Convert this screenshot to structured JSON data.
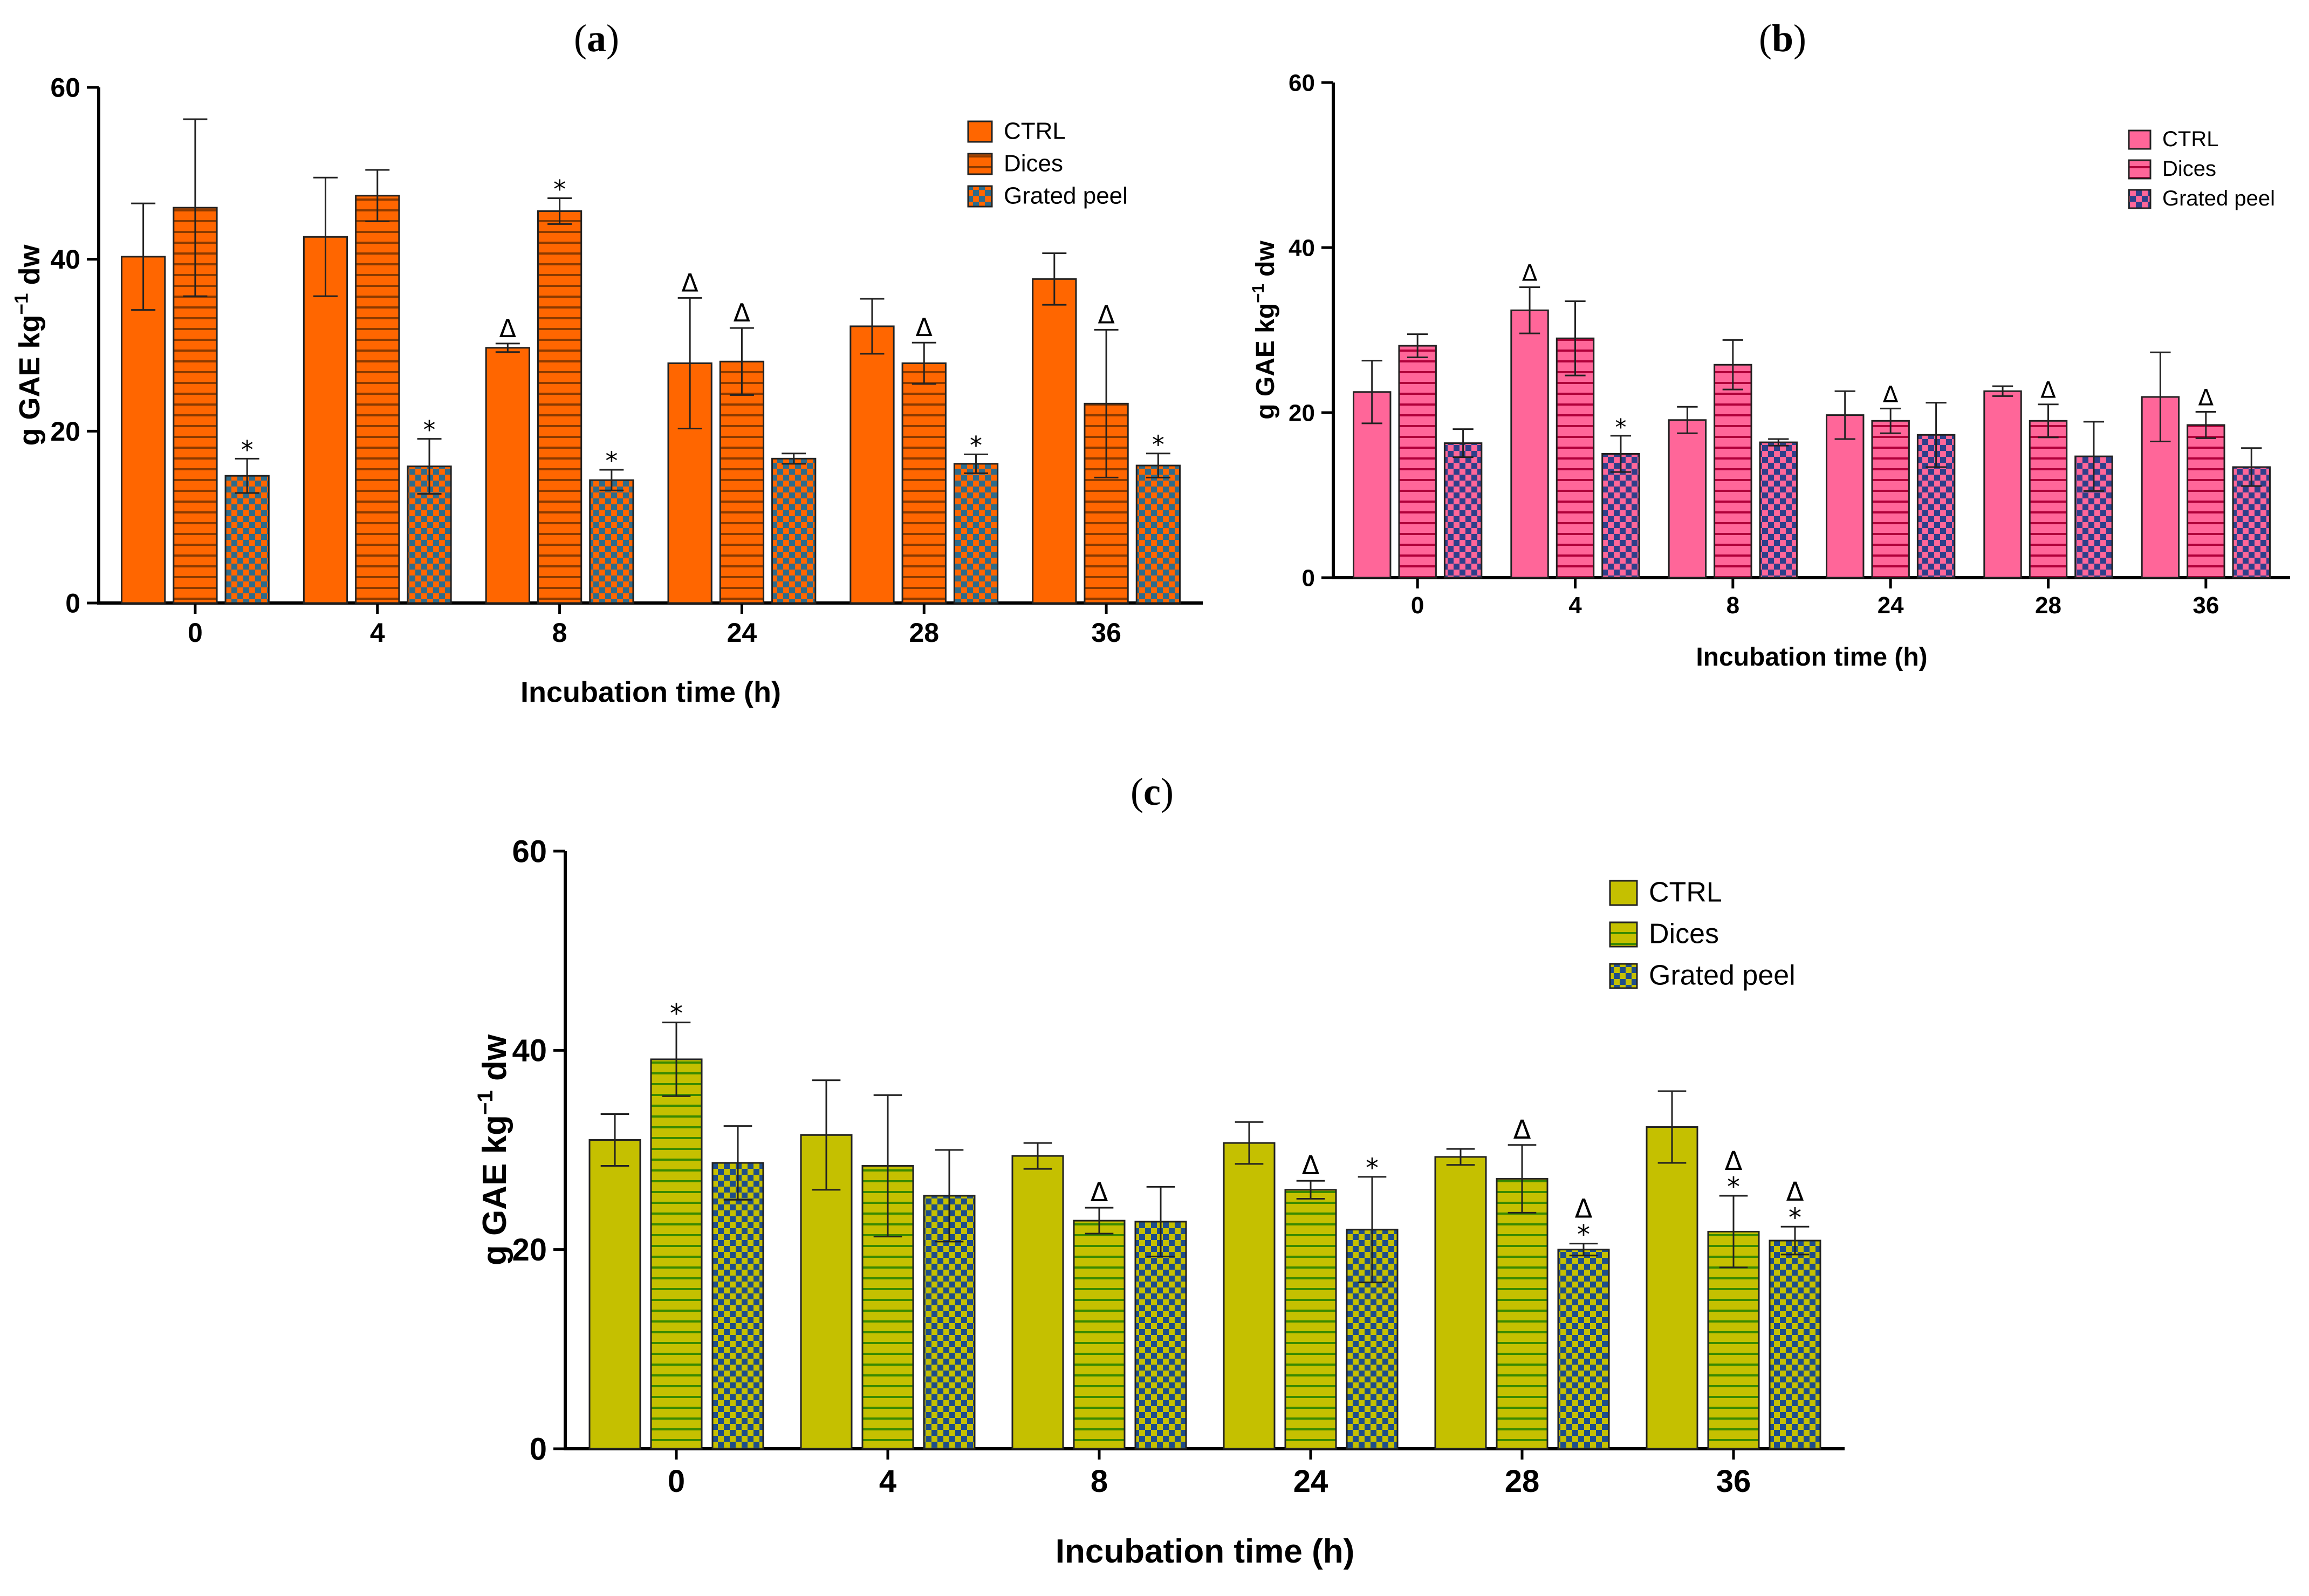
{
  "chart_data": [
    {
      "id": "a",
      "type": "bar",
      "panel_label": "a",
      "ylabel": "g GAE kg−1 dw",
      "ylabel_main": "g GAE kg",
      "ylabel_sup": "−1",
      "ylabel_tail": " dw",
      "xlabel": "Incubation time (h)",
      "ylim": [
        0,
        60
      ],
      "yticks": [
        0,
        20,
        40,
        60
      ],
      "categories": [
        "0",
        "4",
        "8",
        "24",
        "28",
        "36"
      ],
      "legend_position": "top-right",
      "series": [
        {
          "name": "CTRL",
          "pattern": "solid",
          "values": [
            40.3,
            42.6,
            29.7,
            27.9,
            32.2,
            37.7
          ],
          "errors": [
            6.2,
            6.9,
            0.5,
            7.6,
            3.2,
            3.0
          ],
          "marks": [
            "",
            "",
            "Δ",
            "Δ",
            "",
            ""
          ]
        },
        {
          "name": "Dices",
          "pattern": "hstripes",
          "values": [
            46.0,
            47.4,
            45.6,
            28.1,
            27.9,
            23.2
          ],
          "errors": [
            10.3,
            3.0,
            1.5,
            3.9,
            2.4,
            8.6
          ],
          "marks": [
            "",
            "",
            "*",
            "Δ",
            "Δ",
            "Δ"
          ]
        },
        {
          "name": "Grated peel",
          "pattern": "checker",
          "values": [
            14.8,
            15.9,
            14.3,
            16.8,
            16.2,
            16.0
          ],
          "errors": [
            2.0,
            3.2,
            1.2,
            0.6,
            1.1,
            1.4
          ],
          "marks": [
            "*",
            "*",
            "*",
            "",
            "*",
            "*"
          ]
        }
      ],
      "colors": {
        "fill": "#FF6600",
        "stripe": "#8B3A00",
        "checker": "#2E6B8A"
      }
    },
    {
      "id": "b",
      "type": "bar",
      "panel_label": "b",
      "ylabel": "g GAE kg−1 dw",
      "ylabel_main": "g GAE kg",
      "ylabel_sup": "−1",
      "ylabel_tail": " dw",
      "xlabel": "Incubation time (h)",
      "ylim": [
        0,
        60
      ],
      "yticks": [
        0,
        20,
        40,
        60
      ],
      "categories": [
        "0",
        "4",
        "8",
        "24",
        "28",
        "36"
      ],
      "legend_position": "top-right",
      "series": [
        {
          "name": "CTRL",
          "pattern": "solid",
          "values": [
            22.5,
            32.4,
            19.1,
            19.7,
            22.6,
            21.9
          ],
          "errors": [
            3.8,
            2.8,
            1.6,
            2.9,
            0.6,
            5.4
          ],
          "marks": [
            "",
            "Δ",
            "",
            "",
            "",
            ""
          ]
        },
        {
          "name": "Dices",
          "pattern": "hstripes",
          "values": [
            28.1,
            29.0,
            25.8,
            19.0,
            19.0,
            18.5
          ],
          "errors": [
            1.4,
            4.5,
            3.0,
            1.5,
            2.0,
            1.6
          ],
          "marks": [
            "",
            "",
            "",
            "Δ",
            "Δ",
            "Δ"
          ]
        },
        {
          "name": "Grated peel",
          "pattern": "checker",
          "values": [
            16.3,
            15.0,
            16.4,
            17.3,
            14.7,
            13.4
          ],
          "errors": [
            1.7,
            2.2,
            0.4,
            3.9,
            4.2,
            2.3
          ],
          "marks": [
            "",
            "*",
            "",
            "",
            "",
            ""
          ]
        }
      ],
      "colors": {
        "fill": "#FF6699",
        "stripe": "#B0003A",
        "checker": "#2E3F8A"
      }
    },
    {
      "id": "c",
      "type": "bar",
      "panel_label": "c",
      "ylabel": "g GAE kg−1 dw",
      "ylabel_main": "g GAE kg",
      "ylabel_sup": "−1",
      "ylabel_tail": " dw",
      "xlabel": "Incubation time (h)",
      "ylim": [
        0,
        60
      ],
      "yticks": [
        0,
        20,
        40,
        60
      ],
      "categories": [
        "0",
        "4",
        "8",
        "24",
        "28",
        "36"
      ],
      "legend_position": "top-right",
      "series": [
        {
          "name": "CTRL",
          "pattern": "solid",
          "values": [
            31.0,
            31.5,
            29.4,
            30.7,
            29.3,
            32.3
          ],
          "errors": [
            2.6,
            5.5,
            1.3,
            2.1,
            0.8,
            3.6
          ],
          "marks": [
            "",
            "",
            "",
            "",
            "",
            ""
          ]
        },
        {
          "name": "Dices",
          "pattern": "hstripes",
          "values": [
            39.1,
            28.4,
            22.9,
            26.0,
            27.1,
            21.8
          ],
          "errors": [
            3.7,
            7.1,
            1.3,
            0.9,
            3.4,
            3.6
          ],
          "marks": [
            "*",
            "",
            "Δ",
            "Δ",
            "Δ",
            "Δ*"
          ]
        },
        {
          "name": "Grated peel",
          "pattern": "checker",
          "values": [
            28.7,
            25.4,
            22.8,
            22.0,
            20.0,
            20.9
          ],
          "errors": [
            3.7,
            4.6,
            3.5,
            5.3,
            0.6,
            1.4
          ],
          "marks": [
            "",
            "",
            "",
            "*",
            "Δ*",
            "Δ*"
          ]
        }
      ],
      "colors": {
        "fill": "#C5C000",
        "stripe": "#3A8A00",
        "checker": "#1E4D8A"
      }
    }
  ]
}
